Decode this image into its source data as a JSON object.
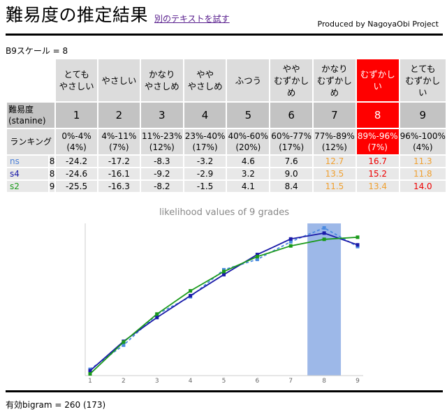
{
  "header": {
    "title": "難易度の推定結果",
    "alt_link": "別のテキストを試す",
    "producer": "Produced by NagoyaObi Project"
  },
  "scale_line": "B9スケール = 8",
  "table": {
    "difficulty_label": "難易度\n(stanine)",
    "ranking_label": "ランキング",
    "highlight_index": 7,
    "grades": [
      {
        "name": "とても\nやさしい",
        "num": "1",
        "range": "0%-4%\n(4%)"
      },
      {
        "name": "やさしい",
        "num": "2",
        "range": "4%-11%\n(7%)"
      },
      {
        "name": "かなり\nやさしめ",
        "num": "3",
        "range": "11%-23%\n(12%)"
      },
      {
        "name": "やや\nやさしめ",
        "num": "4",
        "range": "23%-40%\n(17%)"
      },
      {
        "name": "ふつう",
        "num": "5",
        "range": "40%-60%\n(20%)"
      },
      {
        "name": "やや\nむずかし\nめ",
        "num": "6",
        "range": "60%-77%\n(17%)"
      },
      {
        "name": "かなり\nむずかし\nめ",
        "num": "7",
        "range": "77%-89%\n(12%)"
      },
      {
        "name": "むずかし\nい",
        "num": "8",
        "range": "89%-96%\n(7%)"
      },
      {
        "name": "とても\nむずかし\nい",
        "num": "9",
        "range": "96%-100%\n(4%)"
      }
    ],
    "models": [
      {
        "label": "ns",
        "count": "8",
        "color": "#4a7fd8",
        "scores": [
          "-24.2",
          "-17.2",
          "-8.3",
          "-3.2",
          "4.6",
          "7.6",
          "12.7",
          "16.7",
          "11.3"
        ],
        "score_colors": [
          "",
          "",
          "",
          "",
          "",
          "",
          "orange",
          "red",
          "orange"
        ]
      },
      {
        "label": "s4",
        "count": "8",
        "color": "#1a1aa8",
        "scores": [
          "-24.6",
          "-16.1",
          "-9.2",
          "-2.9",
          "3.2",
          "9.0",
          "13.5",
          "15.2",
          "11.8"
        ],
        "score_colors": [
          "",
          "",
          "",
          "",
          "",
          "",
          "orange",
          "red",
          "orange"
        ]
      },
      {
        "label": "s2",
        "count": "9",
        "color": "#1a9a1a",
        "scores": [
          "-25.5",
          "-16.3",
          "-8.2",
          "-1.5",
          "4.1",
          "8.4",
          "11.5",
          "13.4",
          "14.0"
        ],
        "score_colors": [
          "",
          "",
          "",
          "",
          "",
          "",
          "orange",
          "orange",
          "red"
        ]
      }
    ]
  },
  "chart_data": {
    "type": "line",
    "title": "likelihood values of 9 grades",
    "x": [
      1,
      2,
      3,
      4,
      5,
      6,
      7,
      8,
      9
    ],
    "highlight_x": 8,
    "highlight_color": "#9db8e8",
    "ylim": [
      -26,
      18
    ],
    "series": [
      {
        "name": "ns",
        "color": "#4a8ae0",
        "dashed": true,
        "values": [
          -24.2,
          -17.2,
          -8.3,
          -3.2,
          4.6,
          7.6,
          12.7,
          16.7,
          11.3
        ]
      },
      {
        "name": "s4",
        "color": "#1a1aa8",
        "dashed": false,
        "values": [
          -24.6,
          -16.1,
          -9.2,
          -2.9,
          3.2,
          9.0,
          13.5,
          15.2,
          11.8
        ]
      },
      {
        "name": "s2",
        "color": "#1a9a1a",
        "dashed": false,
        "values": [
          -25.5,
          -16.3,
          -8.2,
          -1.5,
          4.1,
          8.4,
          11.5,
          13.4,
          14.0
        ]
      }
    ]
  },
  "footer": "有効bigram = 260 (173)"
}
